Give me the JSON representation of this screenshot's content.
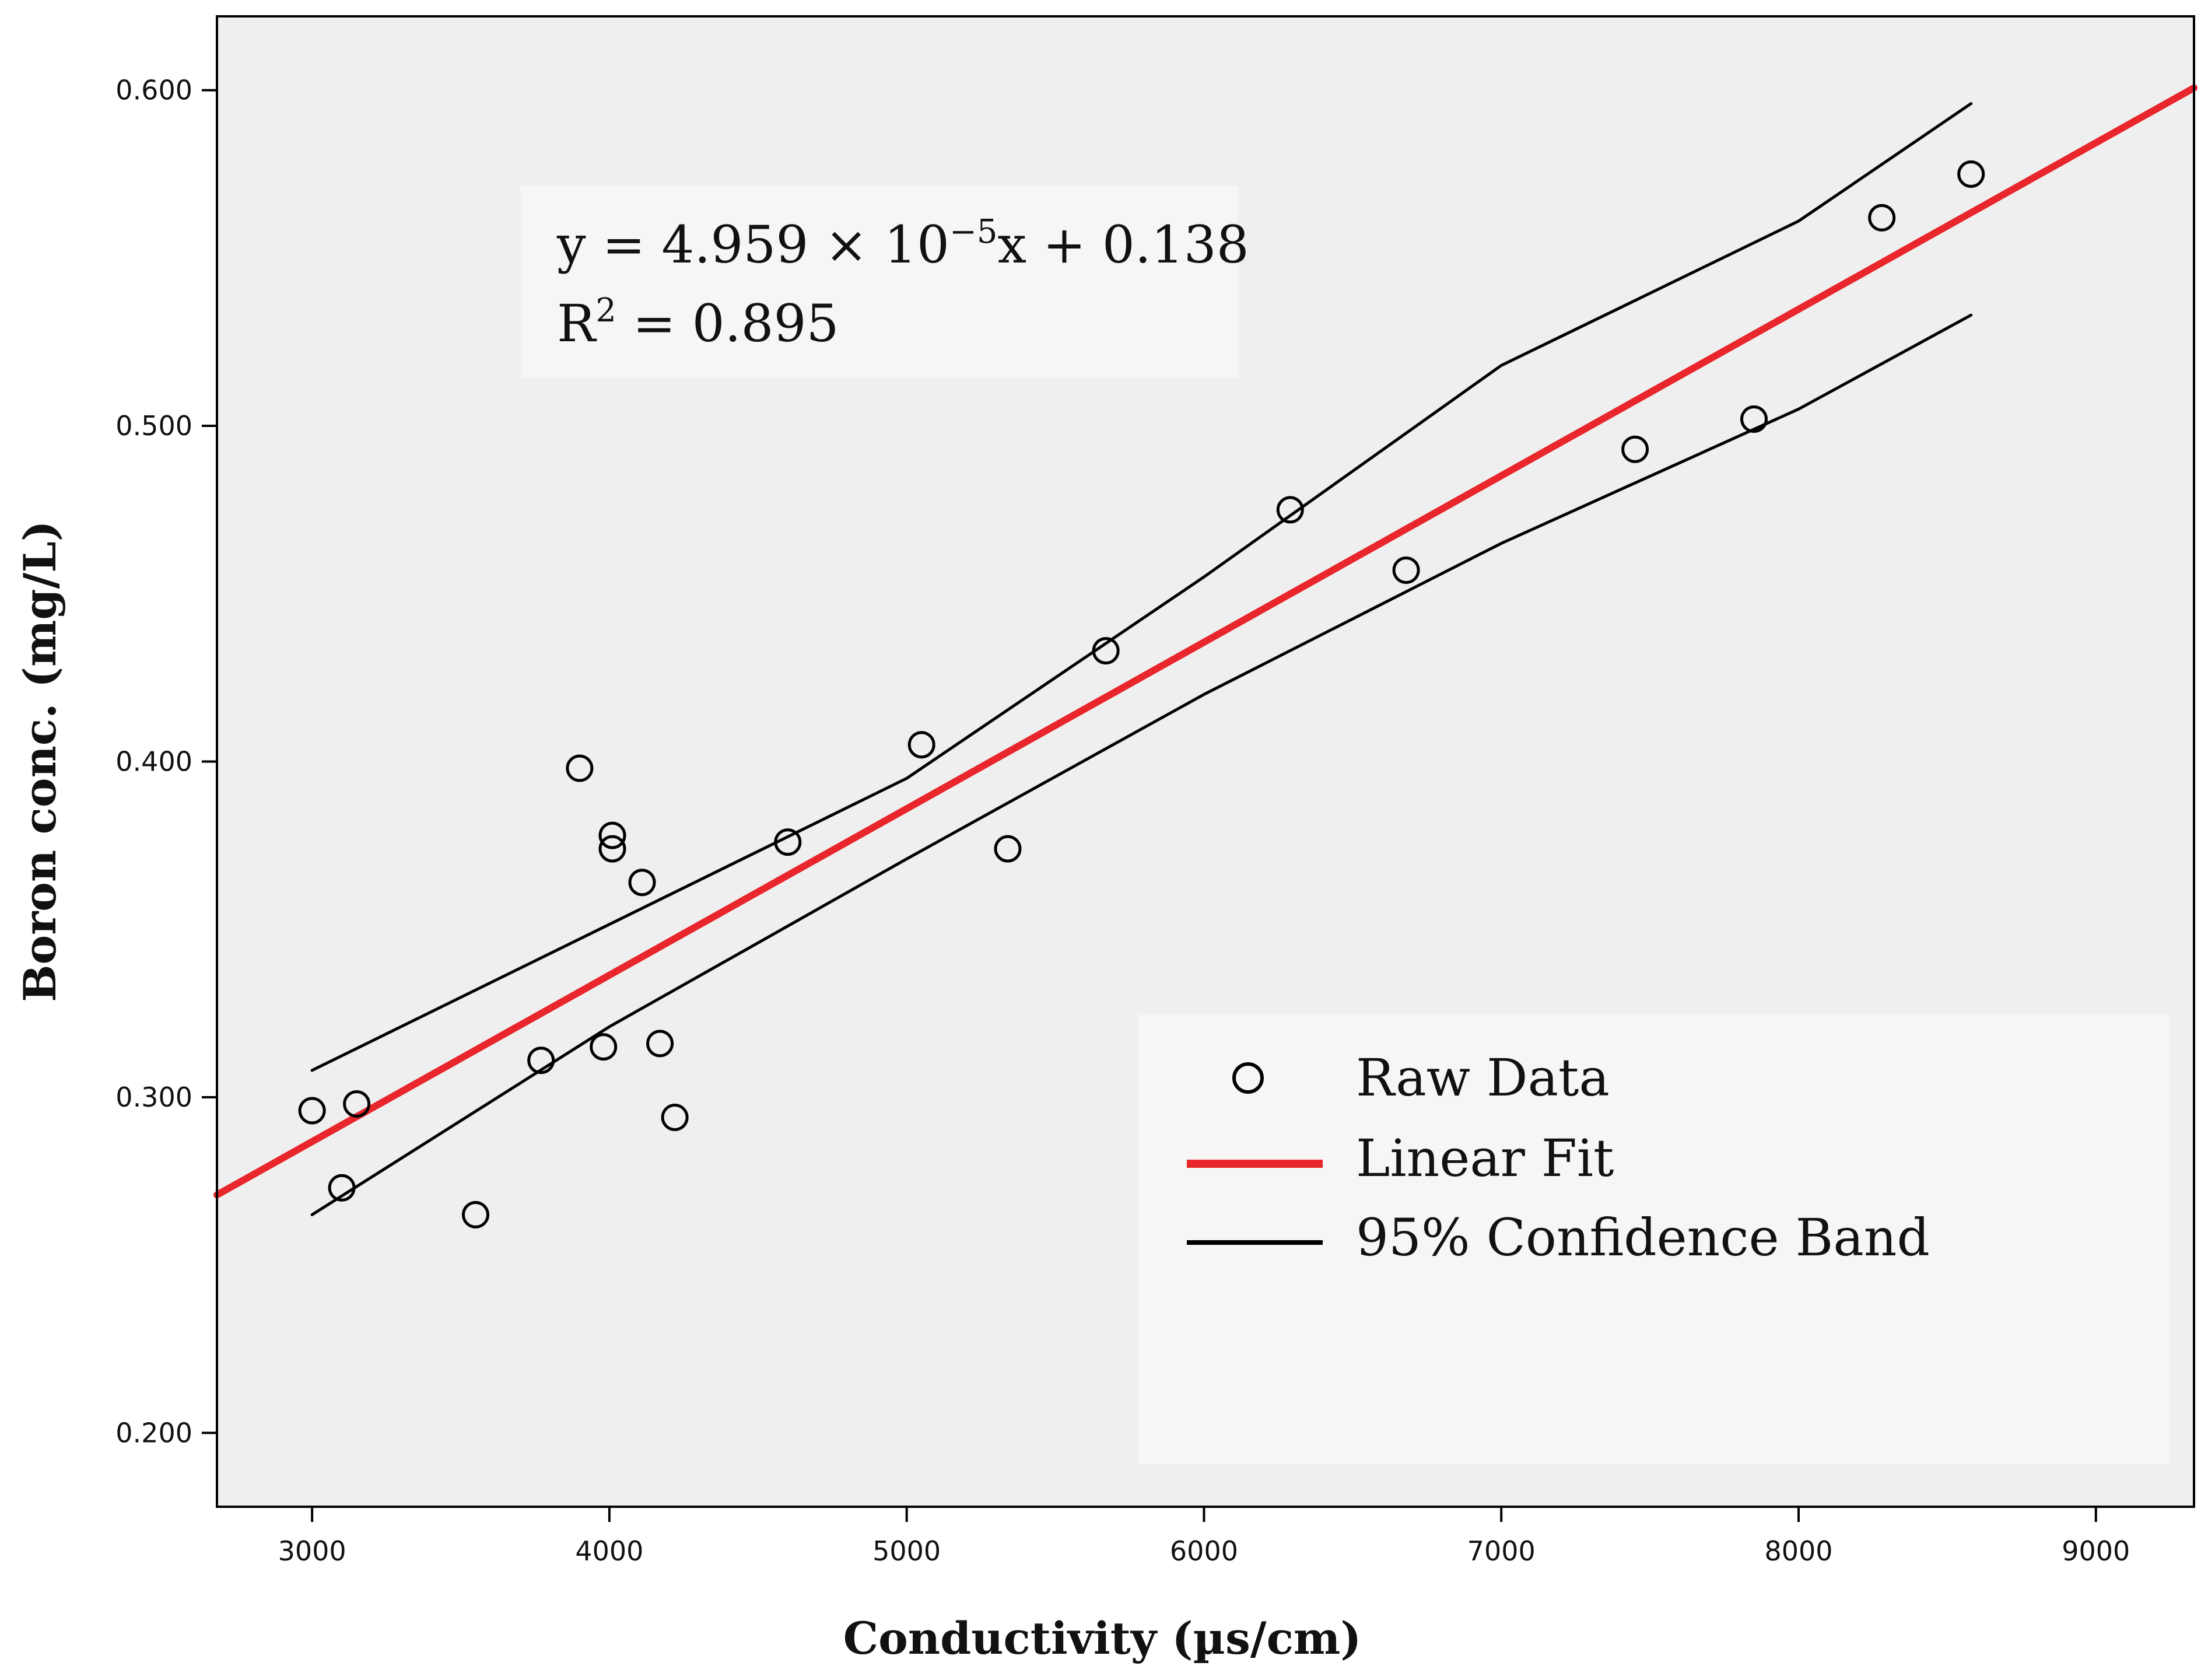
{
  "chart_data": {
    "type": "scatter",
    "xlabel": "Conductivity (µs/cm)",
    "ylabel": "Boron conc. (mg/L)",
    "xlim": [
      2680,
      9330
    ],
    "ylim": [
      0.178,
      0.622
    ],
    "x_ticks": [
      3000,
      4000,
      5000,
      6000,
      7000,
      8000,
      9000
    ],
    "y_ticks": [
      0.2,
      0.3,
      0.4,
      0.5,
      0.6
    ],
    "x_tick_labels": [
      "3000",
      "4000",
      "5000",
      "6000",
      "7000",
      "8000",
      "9000"
    ],
    "y_tick_labels": [
      "0.200",
      "0.300",
      "0.400",
      "0.500",
      "0.600"
    ],
    "grid": false,
    "background": "#efefef",
    "equation": {
      "line1_prefix": "y = 4.959 × 10",
      "line1_exp": "−5",
      "line1_suffix": "x + 0.138",
      "line2_prefix": "R",
      "line2_exp": "2",
      "line2_suffix": " = 0.895"
    },
    "series": [
      {
        "name": "Raw Data",
        "kind": "points",
        "marker": "open-circle",
        "color": "#000000",
        "points": [
          {
            "x": 3000,
            "y": 0.296
          },
          {
            "x": 3100,
            "y": 0.273
          },
          {
            "x": 3150,
            "y": 0.298
          },
          {
            "x": 3550,
            "y": 0.265
          },
          {
            "x": 3770,
            "y": 0.311
          },
          {
            "x": 3900,
            "y": 0.398
          },
          {
            "x": 3980,
            "y": 0.315
          },
          {
            "x": 4010,
            "y": 0.374
          },
          {
            "x": 4010,
            "y": 0.378
          },
          {
            "x": 4110,
            "y": 0.364
          },
          {
            "x": 4170,
            "y": 0.316
          },
          {
            "x": 4220,
            "y": 0.294
          },
          {
            "x": 4600,
            "y": 0.376
          },
          {
            "x": 5050,
            "y": 0.405
          },
          {
            "x": 5340,
            "y": 0.374
          },
          {
            "x": 5670,
            "y": 0.433
          },
          {
            "x": 6290,
            "y": 0.475
          },
          {
            "x": 6680,
            "y": 0.457
          },
          {
            "x": 7450,
            "y": 0.493
          },
          {
            "x": 7850,
            "y": 0.502
          },
          {
            "x": 8280,
            "y": 0.562
          },
          {
            "x": 8580,
            "y": 0.575
          }
        ]
      },
      {
        "name": "Linear Fit",
        "kind": "line",
        "color": "#e8262b",
        "points": [
          {
            "x": 2680,
            "y": 0.2709
          },
          {
            "x": 9330,
            "y": 0.6007
          }
        ]
      },
      {
        "name": "95% Confidence Band",
        "kind": "line",
        "color": "#000000",
        "points": [
          {
            "x": 3000,
            "y": 0.308
          },
          {
            "x": 5000,
            "y": 0.395
          },
          {
            "x": 6000,
            "y": 0.455
          },
          {
            "x": 7000,
            "y": 0.518
          },
          {
            "x": 8000,
            "y": 0.561
          },
          {
            "x": 8580,
            "y": 0.596
          }
        ]
      },
      {
        "name": "95% Confidence Band (lower)",
        "kind": "line",
        "color": "#000000",
        "points": [
          {
            "x": 3000,
            "y": 0.265
          },
          {
            "x": 4000,
            "y": 0.321
          },
          {
            "x": 5000,
            "y": 0.371
          },
          {
            "x": 6000,
            "y": 0.42
          },
          {
            "x": 7000,
            "y": 0.465
          },
          {
            "x": 8000,
            "y": 0.505
          },
          {
            "x": 8580,
            "y": 0.533
          }
        ]
      }
    ],
    "legend": {
      "position": "bottom-right",
      "entries": [
        {
          "label": "Raw Data",
          "symbol": "open-circle",
          "color": "#000000"
        },
        {
          "label": "Linear Fit",
          "symbol": "line",
          "color": "#e8262b"
        },
        {
          "label": "95% Confidence Band",
          "symbol": "line",
          "color": "#000000"
        }
      ]
    }
  }
}
